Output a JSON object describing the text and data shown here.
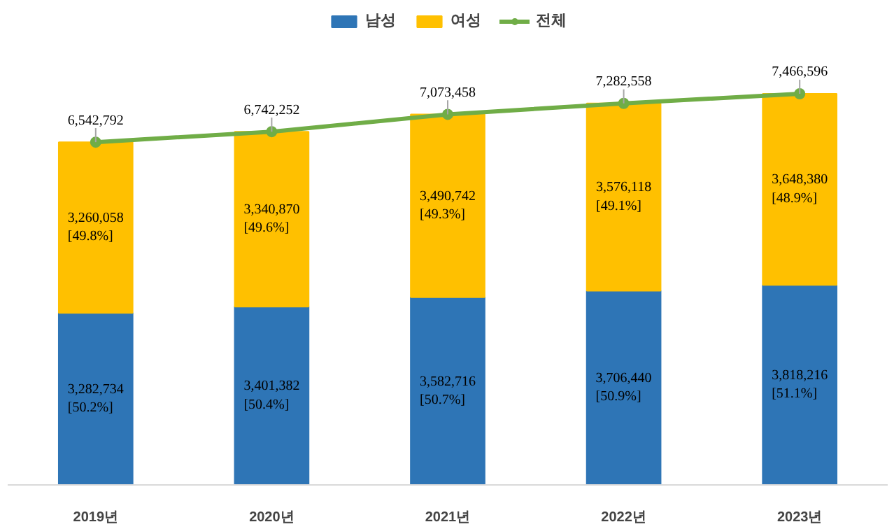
{
  "chart_data": {
    "type": "bar",
    "stacked": true,
    "legend": "top",
    "grid": false,
    "categories": [
      "2019년",
      "2020년",
      "2021년",
      "2022년",
      "2023년"
    ],
    "series": [
      {
        "name": "남성",
        "color": "#2e75b6",
        "values": [
          3282734,
          3401382,
          3582716,
          3706440,
          3818216
        ],
        "value_labels": [
          "3,282,734\n[50.2%]",
          "3,401,382\n[50.4%]",
          "3,582,716\n[50.7%]",
          "3,706,440\n[50.9%]",
          "3,818,216\n[51.1%]"
        ]
      },
      {
        "name": "여성",
        "color": "#ffc000",
        "values": [
          3260058,
          3340870,
          3490742,
          3576118,
          3648380
        ],
        "value_labels": [
          "3,260,058\n[49.8%]",
          "3,340,870\n[49.6%]",
          "3,490,742\n[49.3%]",
          "3,576,118\n[49.1%]",
          "3,648,380\n[48.9%]"
        ]
      },
      {
        "name": "전체",
        "type": "line",
        "marker": "circle",
        "color": "#70ad47",
        "values": [
          6542792,
          6742252,
          7073458,
          7282558,
          7466596
        ],
        "value_labels": [
          "6,542,792",
          "6,742,252",
          "7,073,458",
          "7,282,558",
          "7,466,596"
        ]
      }
    ]
  }
}
